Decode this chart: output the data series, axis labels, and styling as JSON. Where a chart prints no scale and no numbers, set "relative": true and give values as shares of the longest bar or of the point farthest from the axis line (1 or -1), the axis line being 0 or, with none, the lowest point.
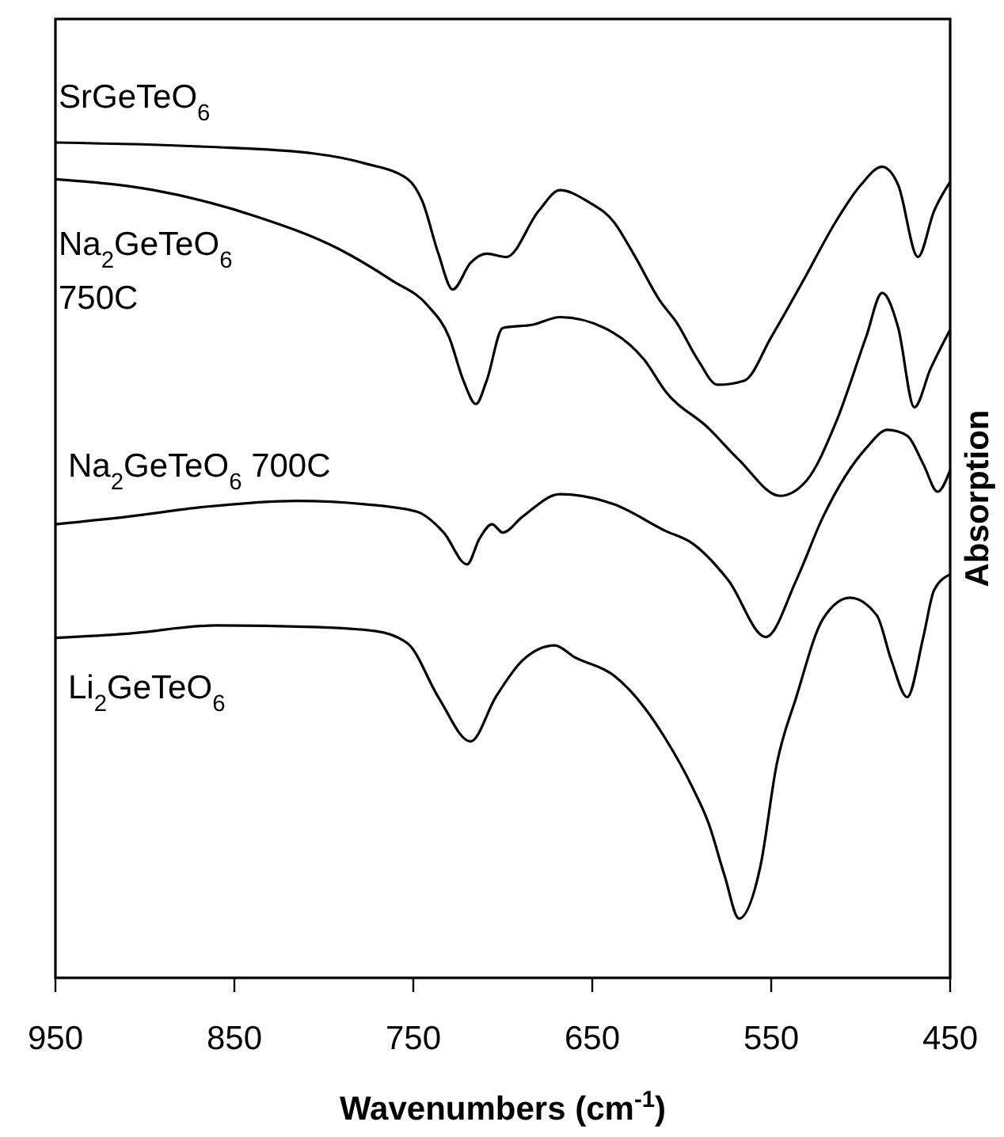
{
  "chart_data": {
    "type": "line",
    "relative": true,
    "xlabel": "Wavenumbers (cm$^{-1}$)",
    "ylabel": "Absorption",
    "xlim": [
      950,
      450
    ],
    "xticks": [
      950,
      850,
      750,
      650,
      550,
      450
    ],
    "grid": false,
    "legend": false,
    "marker": "none",
    "line_style": "solid",
    "series": [
      {
        "name": "SrGeTeO$_{6}$",
        "color": "#000000",
        "x": [
          950,
          866,
          806,
          777,
          753,
          745,
          736,
          728,
          718,
          709,
          698,
          680,
          668,
          653,
          638,
          627,
          612,
          603,
          591,
          580,
          565,
          550,
          532,
          514,
          500,
          488,
          479,
          468,
          459,
          450
        ],
        "values": [
          1.0,
          0.995,
          0.987,
          0.975,
          0.956,
          0.93,
          0.867,
          0.824,
          0.856,
          0.867,
          0.863,
          0.918,
          0.943,
          0.93,
          0.905,
          0.867,
          0.81,
          0.785,
          0.74,
          0.71,
          0.715,
          0.767,
          0.835,
          0.905,
          0.949,
          0.971,
          0.949,
          0.863,
          0.918,
          0.953
        ]
      },
      {
        "name": "Na$_{2}$GeTeO$_{6}$ 750C",
        "color": "#000000",
        "x": [
          950,
          895,
          837,
          792,
          762,
          742,
          730,
          722,
          715,
          709,
          700,
          683,
          668,
          638,
          621,
          609,
          585,
          568,
          545,
          530,
          514,
          497,
          488,
          479,
          470,
          461,
          450
        ],
        "values": [
          0.956,
          0.943,
          0.911,
          0.873,
          0.835,
          0.805,
          0.767,
          0.715,
          0.687,
          0.715,
          0.778,
          0.782,
          0.791,
          0.772,
          0.74,
          0.702,
          0.658,
          0.62,
          0.577,
          0.596,
          0.664,
          0.767,
          0.82,
          0.778,
          0.683,
          0.729,
          0.776
        ]
      },
      {
        "name": "Na$_{2}$GeTeO$_{6}$ 700C",
        "color": "#000000",
        "x": [
          950,
          910,
          866,
          815,
          777,
          748,
          733,
          720,
          713,
          706,
          700,
          689,
          668,
          638,
          609,
          594,
          574,
          553,
          536,
          521,
          497,
          485,
          474,
          465,
          457,
          450
        ],
        "values": [
          0.543,
          0.552,
          0.564,
          0.571,
          0.567,
          0.558,
          0.533,
          0.495,
          0.526,
          0.543,
          0.533,
          0.552,
          0.579,
          0.567,
          0.535,
          0.52,
          0.476,
          0.408,
          0.476,
          0.552,
          0.634,
          0.656,
          0.649,
          0.615,
          0.582,
          0.608
        ]
      },
      {
        "name": "Li$_{2}$GeTeO$_{6}$",
        "color": "#000000",
        "x": [
          950,
          910,
          860,
          806,
          771,
          753,
          736,
          718,
          704,
          689,
          671,
          660,
          638,
          621,
          609,
          594,
          585,
          576,
          568,
          556,
          547,
          536,
          521,
          506,
          491,
          483,
          474,
          465,
          459,
          450
        ],
        "values": [
          0.407,
          0.412,
          0.422,
          0.42,
          0.415,
          0.4,
          0.336,
          0.283,
          0.336,
          0.38,
          0.398,
          0.384,
          0.362,
          0.324,
          0.286,
          0.228,
          0.185,
          0.122,
          0.071,
          0.134,
          0.255,
          0.336,
          0.43,
          0.455,
          0.434,
          0.381,
          0.336,
          0.408,
          0.464,
          0.483
        ]
      }
    ]
  }
}
